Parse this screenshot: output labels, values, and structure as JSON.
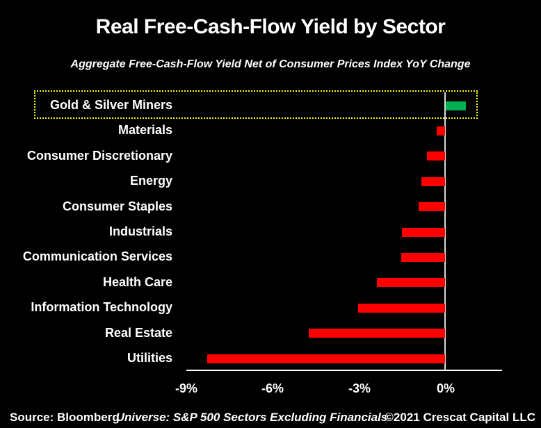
{
  "header": {
    "title": "Real Free-Cash-Flow Yield by Sector",
    "subtitle": "Aggregate Free-Cash-Flow Yield Net of Consumer Prices Index YoY Change"
  },
  "footer": {
    "source": "Source: Bloomberg",
    "universe": "Universe: S&P 500 Sectors Excluding Financials",
    "copyright": "©2021 Crescat Capital LLC"
  },
  "chart_data": {
    "type": "bar",
    "orientation": "horizontal",
    "title": "Real Free-Cash-Flow Yield by Sector",
    "subtitle": "Aggregate Free-Cash-Flow Yield Net of Consumer Prices Index YoY Change",
    "categories": [
      "Gold & Silver Miners",
      "Materials",
      "Consumer Discretionary",
      "Energy",
      "Consumer Staples",
      "Industrials",
      "Communication Services",
      "Health Care",
      "Information Technology",
      "Real Estate",
      "Utilities"
    ],
    "values": [
      0.7,
      -0.3,
      -0.63,
      -0.83,
      -0.92,
      -1.5,
      -1.53,
      -2.37,
      -3.02,
      -4.73,
      -8.25
    ],
    "unit": "%",
    "xlabel": "",
    "ylabel": "",
    "xlim": [
      -9,
      2
    ],
    "x_ticks": [
      {
        "value": -9,
        "label": "-9%"
      },
      {
        "value": -6,
        "label": "-6%"
      },
      {
        "value": -3,
        "label": "-3%"
      },
      {
        "value": 0,
        "label": "0%"
      }
    ],
    "grid": "off",
    "legend": "none",
    "highlight": {
      "category": "Gold & Silver Miners",
      "style": "yellow dotted outline around row"
    },
    "colors": {
      "positive_bar": "#00B050",
      "negative_bar": "#FF0000",
      "highlight_box": "#FFFF00",
      "axis_line": "#FFFFFF",
      "zero_line": "#D9D9D9",
      "text": "#FFFFFF",
      "background": "#000000"
    }
  }
}
